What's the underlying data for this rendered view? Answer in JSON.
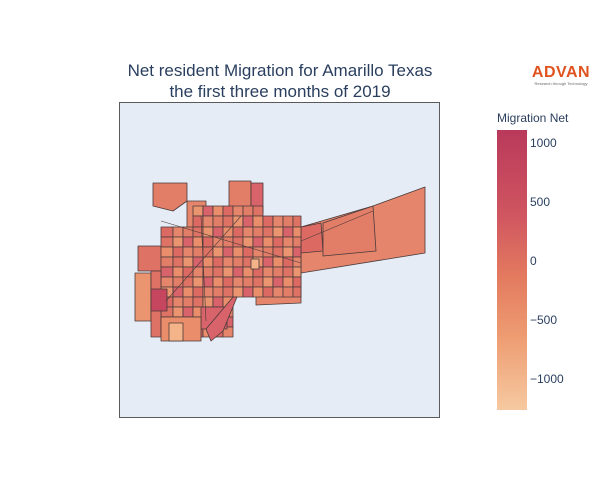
{
  "title_line1": "Net resident Migration for Amarillo Texas",
  "title_line2": "the first three months of 2019",
  "logo": {
    "word": "ADVAN",
    "tagline": "Research through Technology",
    "color": "#e0531f"
  },
  "colorbar": {
    "title": "Migration Net",
    "ticks": [
      "1000",
      "500",
      "0",
      "−500",
      "−1000"
    ],
    "colors": [
      "#b9395b",
      "#cf5560",
      "#e37a5f",
      "#ee9c72",
      "#f6c9a0"
    ]
  },
  "map": {
    "background": "#e5ecf6",
    "border_color": "#4a3a3a"
  }
}
